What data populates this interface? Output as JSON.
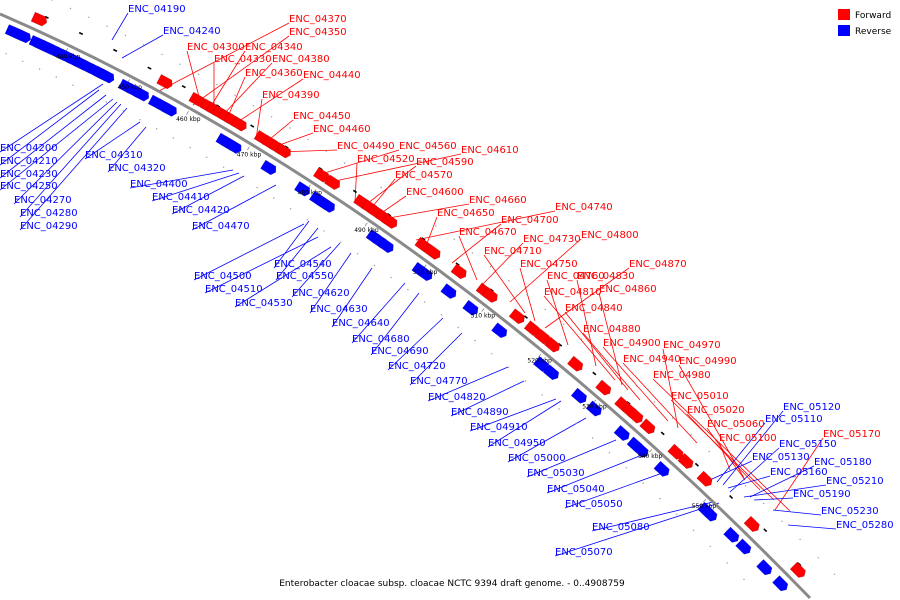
{
  "caption": "Enterobacter cloacae subsp. cloacae NCTC 9394 draft genome. - 0..4908759",
  "legend": [
    {
      "label": "Forward",
      "color": "#ff0000"
    },
    {
      "label": "Reverse",
      "color": "#0000ff"
    }
  ],
  "ticks": [
    "440 kbp",
    "450 kbp",
    "460 kbp",
    "470 kbp",
    "480 kbp",
    "490 kbp",
    "500 kbp",
    "510 kbp",
    "520 kbp",
    "530 kbp",
    "540 kbp",
    "550 kbp"
  ],
  "forward_labels": [
    "ENC_04370",
    "ENC_04350",
    "ENC_04300",
    "ENC_04340",
    "ENC_04330",
    "ENC_04380",
    "ENC_04360",
    "ENC_04440",
    "ENC_04390",
    "ENC_04450",
    "ENC_04460",
    "ENC_04490",
    "ENC_04560",
    "ENC_04610",
    "ENC_04520",
    "ENC_04590",
    "ENC_04570",
    "ENC_04600",
    "ENC_04660",
    "ENC_04740",
    "ENC_04650",
    "ENC_04700",
    "ENC_04670",
    "ENC_04730",
    "ENC_04800",
    "ENC_04710",
    "ENC_04750",
    "ENC_04870",
    "ENC_04760",
    "ENC_04830",
    "ENC_04810",
    "ENC_04860",
    "ENC_04840",
    "ENC_04880",
    "ENC_04900",
    "ENC_04970",
    "ENC_04940",
    "ENC_04990",
    "ENC_04980",
    "ENC_05010",
    "ENC_05020",
    "ENC_05060",
    "ENC_05100",
    "ENC_05170"
  ],
  "reverse_labels": [
    "ENC_04190",
    "ENC_04240",
    "ENC_04200",
    "ENC_04210",
    "ENC_04230",
    "ENC_04250",
    "ENC_04270",
    "ENC_04280",
    "ENC_04290",
    "ENC_04310",
    "ENC_04320",
    "ENC_04400",
    "ENC_04410",
    "ENC_04420",
    "ENC_04470",
    "ENC_04540",
    "ENC_04500",
    "ENC_04550",
    "ENC_04510",
    "ENC_04620",
    "ENC_04530",
    "ENC_04630",
    "ENC_04640",
    "ENC_04680",
    "ENC_04690",
    "ENC_04720",
    "ENC_04770",
    "ENC_04820",
    "ENC_04890",
    "ENC_04910",
    "ENC_04950",
    "ENC_05000",
    "ENC_05030",
    "ENC_05040",
    "ENC_05050",
    "ENC_05080",
    "ENC_05070",
    "ENC_05120",
    "ENC_05110",
    "ENC_05150",
    "ENC_05130",
    "ENC_05160",
    "ENC_05180",
    "ENC_05210",
    "ENC_05190",
    "ENC_05230",
    "ENC_05280"
  ]
}
